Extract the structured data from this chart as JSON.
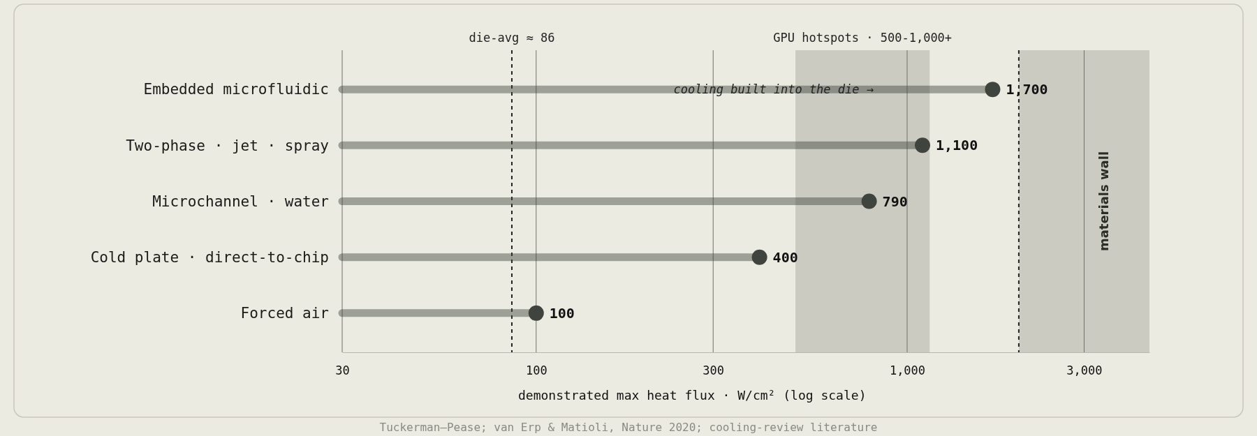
{
  "chart_data": {
    "type": "lollipop",
    "orientation": "horizontal",
    "log": "x",
    "categories": [
      "Embedded microfluidic",
      "Two-phase · jet · spray",
      "Microchannel · water",
      "Cold plate · direct-to-chip",
      "Forced air"
    ],
    "values": [
      1700,
      1100,
      790,
      400,
      100
    ],
    "value_labels": [
      "1,700",
      "1,100",
      "790",
      "400",
      "100"
    ],
    "color": "#3f443e",
    "xlim": [
      30,
      4500
    ],
    "xticks": [
      30,
      100,
      300,
      {
        "value": 1000,
        "label": "1,000"
      },
      {
        "value": 3000,
        "label": "3,000"
      }
    ],
    "grid": "x",
    "marker": "circle",
    "xlabel": "demonstrated max heat flux · W/cm² (log scale)",
    "ref_lines": [
      {
        "axis": "x",
        "value": 86,
        "label": "die-avg ≈ 86",
        "line_style": "dashed",
        "color": "#222222"
      },
      {
        "axis": "x",
        "value": 2000,
        "label": null,
        "line_style": "dashed",
        "color": "#222222"
      }
    ],
    "bands": [
      {
        "axis": "x",
        "from": 500,
        "to": 1150,
        "label": "GPU hotspots · 500-1,000+",
        "color": "#c6c5bc"
      },
      {
        "axis": "x",
        "from": 2000,
        "to": 4500,
        "label": "materials wall",
        "color": "#c6c5bc"
      }
    ],
    "annotations": [
      "cooling built into the die →",
      "Tuckerman–Pease; van Erp & Matioli, Nature 2020; cooling-review literature"
    ]
  }
}
